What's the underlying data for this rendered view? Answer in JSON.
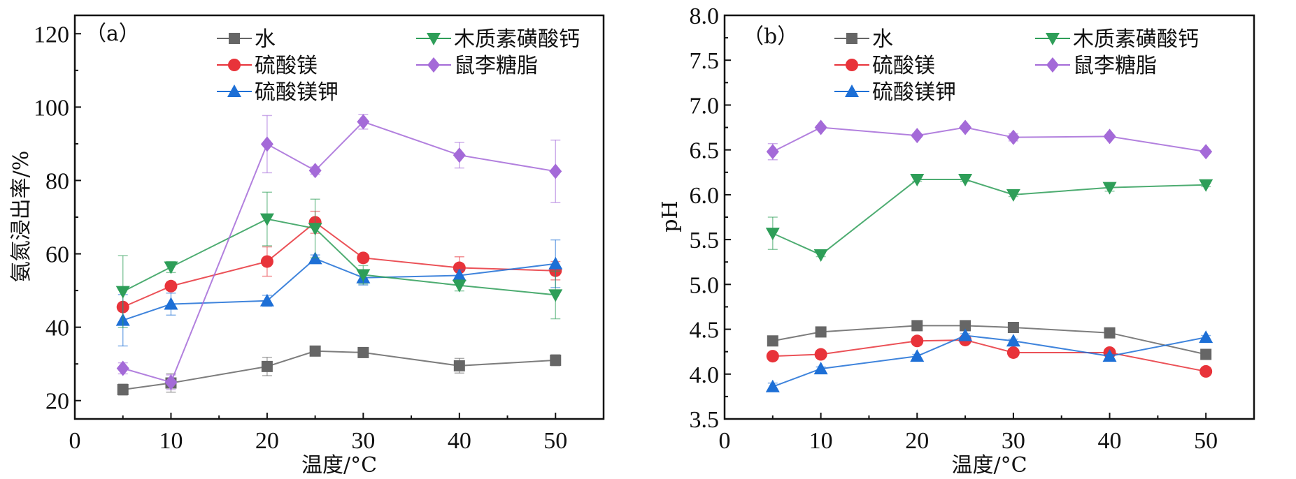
{
  "chart_data": [
    {
      "type": "line",
      "panel_label": "（a）",
      "title": "",
      "xlabel": "温度/°C",
      "ylabel": "氨氮浸出率/%",
      "xlim": [
        0,
        55
      ],
      "ylim": [
        15,
        125
      ],
      "xticks": [
        0,
        10,
        20,
        30,
        40,
        50
      ],
      "xtick_labels": [
        "0",
        "10",
        "20",
        "30",
        "40",
        "50"
      ],
      "yticks": [
        20,
        40,
        60,
        80,
        100,
        120
      ],
      "ytick_labels": [
        "20",
        "40",
        "60",
        "80",
        "100",
        "120"
      ],
      "grid": false,
      "legend_position": "top",
      "x": [
        5,
        10,
        20,
        25,
        30,
        40,
        50
      ],
      "series": [
        {
          "name": "水",
          "marker": "square",
          "color": "#666666",
          "values": [
            23.0,
            24.8,
            29.3,
            33.5,
            33.1,
            29.5,
            31.0
          ],
          "errors": [
            1.5,
            2.5,
            2.5,
            1.2,
            0.8,
            2.0,
            1.5
          ]
        },
        {
          "name": "硫酸镁",
          "marker": "circle",
          "color": "#e8333a",
          "values": [
            45.5,
            51.2,
            57.9,
            68.6,
            58.9,
            56.2,
            55.4
          ],
          "errors": [
            0,
            0,
            4.0,
            3.0,
            0.8,
            3.0,
            2.5
          ]
        },
        {
          "name": "硫酸镁钾",
          "marker": "triangle-up",
          "color": "#1d6fd6",
          "values": [
            41.9,
            46.3,
            47.2,
            58.7,
            53.5,
            54.1,
            57.3
          ],
          "errors": [
            7.0,
            3.0,
            1.5,
            1.0,
            2.0,
            1.5,
            6.5
          ]
        },
        {
          "name": "木质素磺酸钙",
          "marker": "triangle-down",
          "color": "#2e9e58",
          "values": [
            49.7,
            56.4,
            69.5,
            66.9,
            54.3,
            51.4,
            48.8
          ],
          "errors": [
            9.8,
            1.5,
            7.3,
            8.0,
            2.5,
            1.5,
            6.5
          ]
        },
        {
          "name": "鼠李糖脂",
          "marker": "diamond",
          "color": "#a46ad8",
          "values": [
            28.8,
            25.0,
            89.9,
            82.7,
            96.0,
            86.9,
            82.5
          ],
          "errors": [
            1.5,
            2.0,
            7.8,
            1.0,
            2.0,
            3.5,
            8.5
          ]
        }
      ]
    },
    {
      "type": "line",
      "panel_label": "（b）",
      "title": "",
      "xlabel": "温度/°C",
      "ylabel": "pH",
      "xlim": [
        0,
        55
      ],
      "ylim": [
        3.5,
        8.0
      ],
      "xticks": [
        0,
        10,
        20,
        30,
        40,
        50
      ],
      "xtick_labels": [
        "0",
        "10",
        "20",
        "30",
        "40",
        "50"
      ],
      "yticks": [
        3.5,
        4.0,
        4.5,
        5.0,
        5.5,
        6.0,
        6.5,
        7.0,
        7.5,
        8.0
      ],
      "ytick_labels": [
        "3.5",
        "4.0",
        "4.5",
        "5.0",
        "5.5",
        "6.0",
        "6.5",
        "7.0",
        "7.5",
        "8.0"
      ],
      "grid": false,
      "legend_position": "top",
      "x": [
        5,
        10,
        20,
        25,
        30,
        40,
        50
      ],
      "series": [
        {
          "name": "水",
          "marker": "square",
          "color": "#666666",
          "values": [
            4.37,
            4.47,
            4.54,
            4.54,
            4.52,
            4.46,
            4.22
          ],
          "errors": [
            0.02,
            0.02,
            0.02,
            0.02,
            0.02,
            0.02,
            0.02
          ]
        },
        {
          "name": "硫酸镁",
          "marker": "circle",
          "color": "#e8333a",
          "values": [
            4.2,
            4.22,
            4.37,
            4.38,
            4.24,
            4.24,
            4.03
          ],
          "errors": [
            0.02,
            0.02,
            0.02,
            0.02,
            0.02,
            0.02,
            0.02
          ]
        },
        {
          "name": "硫酸镁钾",
          "marker": "triangle-up",
          "color": "#1d6fd6",
          "values": [
            3.86,
            4.06,
            4.2,
            4.43,
            4.37,
            4.2,
            4.41
          ],
          "errors": [
            0.04,
            0.02,
            0.02,
            0.02,
            0.02,
            0.02,
            0.02
          ]
        },
        {
          "name": "木质素磺酸钙",
          "marker": "triangle-down",
          "color": "#2e9e58",
          "values": [
            5.57,
            5.33,
            6.17,
            6.17,
            6.0,
            6.08,
            6.11
          ],
          "errors": [
            0.18,
            0.02,
            0.02,
            0.02,
            0.02,
            0.04,
            0.02
          ]
        },
        {
          "name": "鼠李糖脂",
          "marker": "diamond",
          "color": "#a46ad8",
          "values": [
            6.48,
            6.75,
            6.66,
            6.75,
            6.64,
            6.65,
            6.48
          ],
          "errors": [
            0.09,
            0.02,
            0.02,
            0.02,
            0.04,
            0.02,
            0.02
          ]
        }
      ]
    }
  ]
}
